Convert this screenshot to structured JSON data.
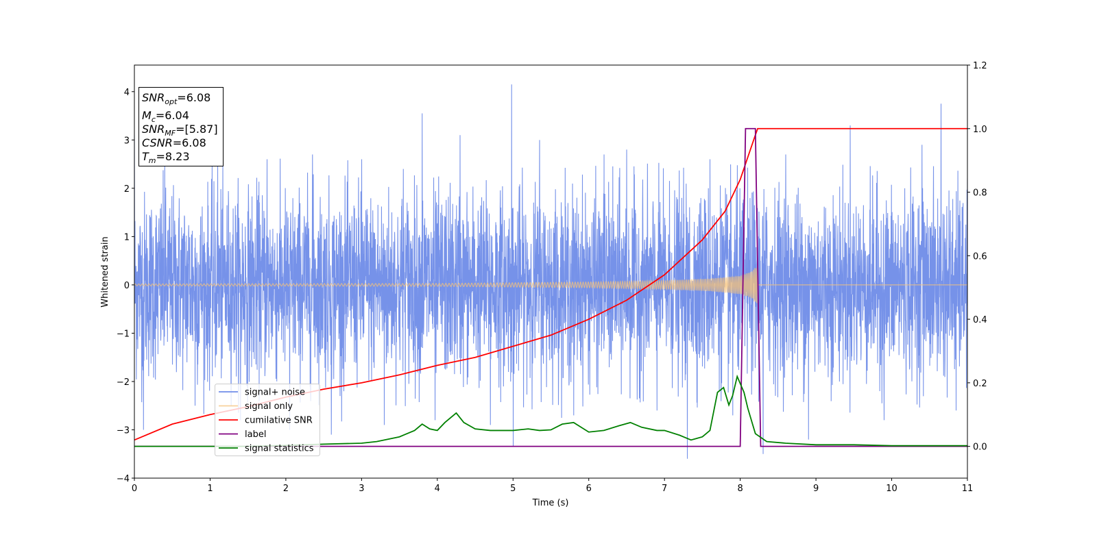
{
  "chart_data": {
    "type": "line",
    "xlabel": "Time (s)",
    "ylabel": "Whitened strain",
    "xlim": [
      0,
      11
    ],
    "ylim": [
      -4,
      4.55
    ],
    "y2lim": [
      -0.1,
      1.2
    ],
    "x_ticks": [
      0,
      1,
      2,
      3,
      4,
      5,
      6,
      7,
      8,
      9,
      10,
      11
    ],
    "y_ticks": [
      -4,
      -3,
      -2,
      -1,
      0,
      1,
      2,
      3,
      4
    ],
    "y2_ticks": [
      0.0,
      0.2,
      0.4,
      0.6,
      0.8,
      1.0,
      1.2
    ],
    "x_tick_labels": [
      "0",
      "1",
      "2",
      "3",
      "4",
      "5",
      "6",
      "7",
      "8",
      "9",
      "10",
      "11"
    ],
    "y_tick_labels": [
      "−4",
      "−3",
      "−2",
      "−1",
      "0",
      "1",
      "2",
      "3",
      "4"
    ],
    "y2_tick_labels": [
      "0.0",
      "0.2",
      "0.4",
      "0.6",
      "0.8",
      "1.0",
      "1.2"
    ],
    "grid": false,
    "legend_position": "lower-left",
    "info_box": {
      "snr_opt": {
        "base": "SNR",
        "sub": "opt",
        "value": "=6.08"
      },
      "mc": {
        "base": "M",
        "sub": "c",
        "value": "=6.04"
      },
      "snr_mf": {
        "base": "SNR",
        "sub": "MF",
        "value": "=[5.87]"
      },
      "csnr": {
        "base": "CSNR",
        "value": "=6.08"
      },
      "tm": {
        "base": "T",
        "sub": "m",
        "value": "=8.23"
      }
    },
    "series": [
      {
        "name": "signal+ noise",
        "axis": "left",
        "color": "#6f8ce8",
        "description": "white noise plus chirp, roughly between -3.6 and 4.2",
        "points": [
          [
            0.0,
            3.1
          ],
          [
            0.12,
            -3.0
          ],
          [
            0.4,
            2.6
          ],
          [
            0.8,
            -2.5
          ],
          [
            1.1,
            2.5
          ],
          [
            1.4,
            -2.8
          ],
          [
            1.75,
            2.6
          ],
          [
            2.05,
            -3.0
          ],
          [
            2.35,
            2.7
          ],
          [
            2.6,
            -3.1
          ],
          [
            3.0,
            2.6
          ],
          [
            3.3,
            -2.9
          ],
          [
            3.55,
            2.4
          ],
          [
            3.8,
            3.55
          ],
          [
            3.97,
            -2.8
          ],
          [
            4.3,
            3.1
          ],
          [
            4.7,
            -2.9
          ],
          [
            4.98,
            4.15
          ],
          [
            5.0,
            -3.35
          ],
          [
            5.35,
            3.0
          ],
          [
            5.8,
            -2.7
          ],
          [
            6.2,
            2.7
          ],
          [
            6.5,
            2.8
          ],
          [
            6.9,
            -2.6
          ],
          [
            7.3,
            -3.6
          ],
          [
            7.6,
            2.6
          ],
          [
            7.9,
            -2.7
          ],
          [
            8.3,
            -3.5
          ],
          [
            8.6,
            2.7
          ],
          [
            8.9,
            -3.2
          ],
          [
            9.45,
            3.3
          ],
          [
            9.9,
            -2.8
          ],
          [
            10.4,
            2.9
          ],
          [
            10.65,
            3.75
          ],
          [
            10.85,
            -2.6
          ],
          [
            11.0,
            2.2
          ]
        ]
      },
      {
        "name": "signal only",
        "axis": "left",
        "color": "#f5c27a",
        "envelope": [
          [
            0.0,
            0.02
          ],
          [
            2.0,
            0.025
          ],
          [
            4.0,
            0.03
          ],
          [
            6.0,
            0.06
          ],
          [
            7.0,
            0.09
          ],
          [
            7.6,
            0.13
          ],
          [
            8.0,
            0.19
          ],
          [
            8.15,
            0.28
          ],
          [
            8.23,
            0.42
          ]
        ],
        "after_tm": 0.0
      },
      {
        "name": "cumilative SNR",
        "axis": "right",
        "color": "#ff0000",
        "points": [
          [
            0.0,
            0.02
          ],
          [
            0.5,
            0.07
          ],
          [
            1.0,
            0.1
          ],
          [
            1.5,
            0.125
          ],
          [
            2.0,
            0.155
          ],
          [
            2.5,
            0.18
          ],
          [
            3.0,
            0.2
          ],
          [
            3.5,
            0.225
          ],
          [
            4.0,
            0.255
          ],
          [
            4.5,
            0.28
          ],
          [
            5.0,
            0.315
          ],
          [
            5.5,
            0.35
          ],
          [
            6.0,
            0.4
          ],
          [
            6.5,
            0.46
          ],
          [
            7.0,
            0.54
          ],
          [
            7.5,
            0.65
          ],
          [
            7.8,
            0.74
          ],
          [
            8.0,
            0.84
          ],
          [
            8.1,
            0.91
          ],
          [
            8.2,
            0.98
          ],
          [
            8.23,
            1.0
          ],
          [
            11.0,
            1.0
          ]
        ]
      },
      {
        "name": "label",
        "axis": "right",
        "color": "#800080",
        "points": [
          [
            0.0,
            0.0
          ],
          [
            8.0,
            0.0
          ],
          [
            8.07,
            1.0
          ],
          [
            8.2,
            1.0
          ],
          [
            8.27,
            0.0
          ],
          [
            11.0,
            0.0
          ]
        ]
      },
      {
        "name": "signal statistics",
        "axis": "right",
        "color": "#008000",
        "points": [
          [
            0.0,
            0.0
          ],
          [
            0.5,
            0.0
          ],
          [
            1.0,
            0.0
          ],
          [
            1.5,
            0.0
          ],
          [
            2.0,
            0.003
          ],
          [
            2.5,
            0.007
          ],
          [
            3.0,
            0.01
          ],
          [
            3.2,
            0.015
          ],
          [
            3.5,
            0.03
          ],
          [
            3.7,
            0.05
          ],
          [
            3.8,
            0.07
          ],
          [
            3.9,
            0.055
          ],
          [
            4.0,
            0.05
          ],
          [
            4.1,
            0.075
          ],
          [
            4.25,
            0.105
          ],
          [
            4.35,
            0.075
          ],
          [
            4.5,
            0.055
          ],
          [
            4.7,
            0.05
          ],
          [
            4.9,
            0.05
          ],
          [
            5.0,
            0.05
          ],
          [
            5.2,
            0.055
          ],
          [
            5.35,
            0.05
          ],
          [
            5.5,
            0.052
          ],
          [
            5.65,
            0.07
          ],
          [
            5.8,
            0.075
          ],
          [
            6.0,
            0.045
          ],
          [
            6.2,
            0.05
          ],
          [
            6.4,
            0.065
          ],
          [
            6.55,
            0.075
          ],
          [
            6.7,
            0.06
          ],
          [
            6.9,
            0.05
          ],
          [
            7.0,
            0.05
          ],
          [
            7.2,
            0.035
          ],
          [
            7.35,
            0.02
          ],
          [
            7.5,
            0.03
          ],
          [
            7.6,
            0.05
          ],
          [
            7.7,
            0.17
          ],
          [
            7.78,
            0.185
          ],
          [
            7.85,
            0.13
          ],
          [
            7.9,
            0.16
          ],
          [
            7.96,
            0.22
          ],
          [
            8.05,
            0.17
          ],
          [
            8.1,
            0.12
          ],
          [
            8.2,
            0.04
          ],
          [
            8.35,
            0.015
          ],
          [
            8.6,
            0.01
          ],
          [
            9.0,
            0.005
          ],
          [
            9.5,
            0.005
          ],
          [
            10.0,
            0.002
          ],
          [
            11.0,
            0.002
          ]
        ]
      }
    ]
  }
}
